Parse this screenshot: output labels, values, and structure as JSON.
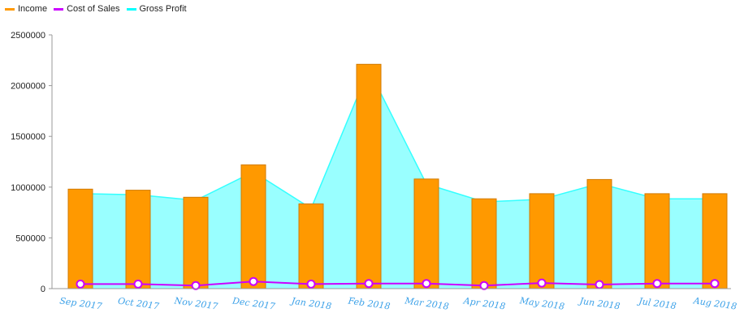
{
  "chart_data": {
    "type": "bar",
    "title": "",
    "xlabel": "",
    "ylabel": "",
    "categories": [
      "Sep 2017",
      "Oct 2017",
      "Nov 2017",
      "Dec 2017",
      "Jan 2018",
      "Feb 2018",
      "Mar 2018",
      "Apr 2018",
      "May 2018",
      "Jun 2018",
      "Jul 2018",
      "Aug 2018"
    ],
    "ylim": [
      0,
      2500000
    ],
    "y_ticks": [
      "0",
      "500000",
      "1000000",
      "1500000",
      "2000000",
      "2500000"
    ],
    "legend_position": "top-left",
    "grid": false,
    "series": [
      {
        "name": "Income",
        "type": "bar",
        "color": "#ff9900",
        "values": [
          980000,
          970000,
          900000,
          1220000,
          835000,
          2210000,
          1080000,
          885000,
          935000,
          1075000,
          935000,
          935000
        ]
      },
      {
        "name": "Cost of Sales",
        "type": "line",
        "color": "#cc00ff",
        "values": [
          45000,
          45000,
          30000,
          70000,
          45000,
          50000,
          50000,
          30000,
          55000,
          40000,
          50000,
          50000
        ]
      },
      {
        "name": "Gross Profit",
        "type": "area",
        "color": "#00ffff",
        "values": [
          935000,
          925000,
          870000,
          1150000,
          790000,
          2160000,
          1030000,
          855000,
          880000,
          1035000,
          885000,
          885000
        ]
      }
    ]
  }
}
